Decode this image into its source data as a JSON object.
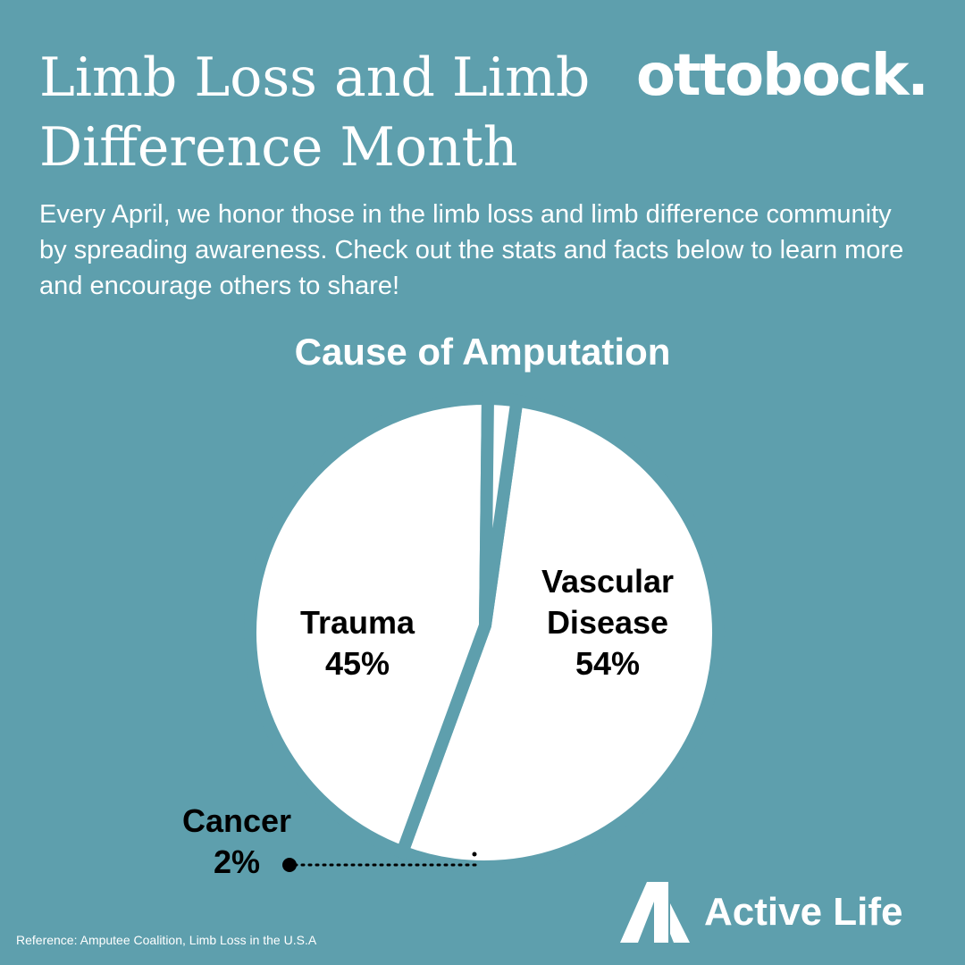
{
  "header": {
    "title": "Limb Loss and Limb Difference Month",
    "brand": "ottobock."
  },
  "intro": "Every April, we honor those in the limb loss and limb difference community by spreading awareness. Check out the stats and facts below to learn more and encourage others to share!",
  "chart_data": {
    "type": "pie",
    "title": "Cause of Amputation",
    "categories": [
      "Vascular Disease",
      "Trauma",
      "Cancer"
    ],
    "values": [
      54,
      45,
      2
    ],
    "labels": [
      {
        "name": "Vascular Disease",
        "lines": [
          "Vascular",
          "Disease"
        ],
        "value_text": "54%"
      },
      {
        "name": "Trauma",
        "lines": [
          "Trauma"
        ],
        "value_text": "45%"
      },
      {
        "name": "Cancer",
        "lines": [
          "Cancer"
        ],
        "value_text": "2%"
      }
    ],
    "colors": {
      "slice": "#ffffff",
      "background": "#5e9fad",
      "label": "#000000"
    }
  },
  "footer": {
    "logo_text": "Active Life",
    "reference": "Reference: Amputee Coalition, Limb Loss in the U.S.A"
  }
}
